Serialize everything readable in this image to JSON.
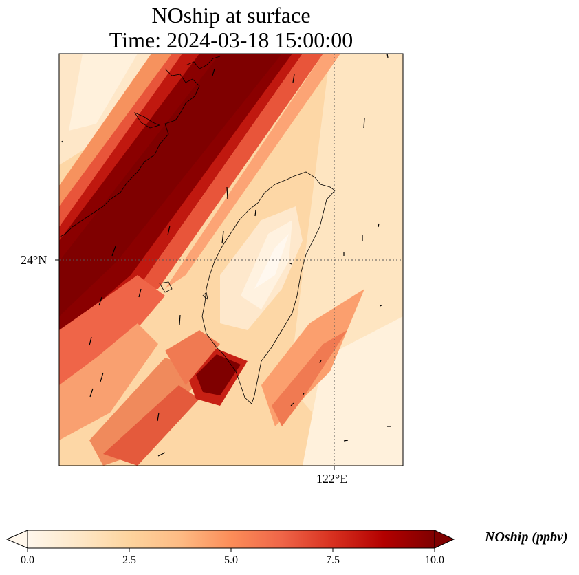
{
  "title": {
    "line1": "NOship at surface",
    "line2": "Time: 2024-03-18 15:00:00"
  },
  "map": {
    "lat_tick": "24°N",
    "lon_tick": "122°E",
    "region": "Taiwan Strait",
    "colormap": "OrRd",
    "colors": [
      "#fff7ec",
      "#fee8c8",
      "#fdd49e",
      "#fdbb84",
      "#fc8d59",
      "#ef6548",
      "#d7301f",
      "#b30000",
      "#7f0000"
    ]
  },
  "colorbar": {
    "label": "NOship (ppbv)",
    "ticks": [
      "0.0",
      "2.5",
      "5.0",
      "7.5",
      "10.0"
    ],
    "min": 0,
    "max": 10,
    "extend": "both"
  }
}
